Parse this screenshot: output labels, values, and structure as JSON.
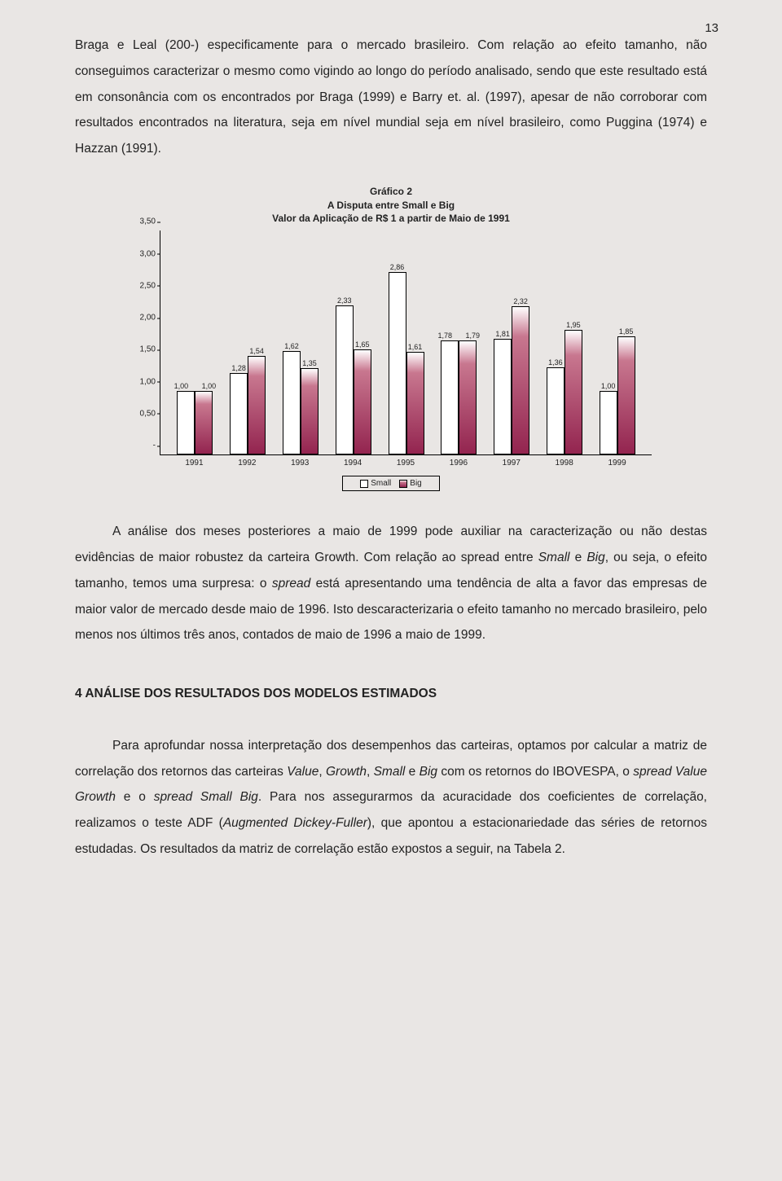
{
  "page_number": "13",
  "para1": "Braga e Leal (200-) especificamente para o mercado brasileiro. Com relação ao efeito tamanho, não conseguimos caracterizar o mesmo como vigindo ao longo do período analisado, sendo que este resultado está em consonância com os encontrados por Braga (1999) e Barry et. al. (1997), apesar de não corroborar com resultados encontrados na literatura, seja em nível mundial seja em nível brasileiro, como Puggina (1974) e Hazzan (1991).",
  "para2_a": "A análise dos meses posteriores a maio de 1999 pode auxiliar na caracterização ou não destas evidências de maior robustez da carteira Growth. Com relação ao spread entre ",
  "para2_b": " e ",
  "para2_c": ", ou seja, o efeito tamanho, temos uma surpresa: o ",
  "para2_d": " está apresentando uma tendência de alta a favor das empresas de maior valor de mercado desde maio de 1996. Isto descaracterizaria o efeito tamanho no mercado brasileiro, pelo menos nos últimos três anos, contados de maio de 1996 a maio de 1999.",
  "para2_small": "Small",
  "para2_big": "Big",
  "para2_spread": "spread",
  "section_heading": "4   ANÁLISE DOS RESULTADOS DOS MODELOS ESTIMADOS",
  "para3_a": "Para aprofundar nossa interpretação dos desempenhos das carteiras, optamos por calcular a matriz de correlação dos retornos das carteiras ",
  "para3_value": "Value",
  "para3_b": ", ",
  "para3_growth": "Growth",
  "para3_c": ", ",
  "para3_small": "Small",
  "para3_d": " e ",
  "para3_big": "Big",
  "para3_e": " com os retornos do IBOVESPA, o ",
  "para3_spread1": "spread Value Growth",
  "para3_f": " e o ",
  "para3_spread2": "spread Small Big",
  "para3_g": ". Para nos assegurarmos da acuracidade dos coeficientes de correlação, realizamos o teste ADF (",
  "para3_adf": "Augmented Dickey-Fuller",
  "para3_h": "), que apontou a estacionariedade das séries de retornos estudadas. Os resultados da matriz de correlação estão expostos a seguir, na Tabela 2.",
  "chart": {
    "title_l1": "Gráfico 2",
    "title_l2": "A Disputa entre Small e Big",
    "title_l3": "Valor da Aplicação de R$ 1 a partir de Maio de 1991",
    "ymax": 3.5,
    "yticks": [
      "3,50",
      "3,00",
      "2,50",
      "2,00",
      "1,50",
      "1,00",
      "0,50",
      "-"
    ],
    "ytick_vals": [
      3.5,
      3.0,
      2.5,
      2.0,
      1.5,
      1.0,
      0.5,
      0.0
    ],
    "years": [
      "1991",
      "1992",
      "1993",
      "1994",
      "1995",
      "1996",
      "1997",
      "1998",
      "1999"
    ],
    "small_vals": [
      1.0,
      1.28,
      1.62,
      2.33,
      2.86,
      1.78,
      1.81,
      1.36,
      1.0
    ],
    "big_vals": [
      1.0,
      1.54,
      1.35,
      1.65,
      1.61,
      1.79,
      2.32,
      1.95,
      1.85
    ],
    "small_labels": [
      "1,00",
      "1,28",
      "1,62",
      "2,33",
      "2,86",
      "1,78",
      "1,81",
      "1,36",
      "1,00"
    ],
    "big_labels": [
      "1,00",
      "1,54",
      "1,35",
      "1,65",
      "1,61",
      "1,79",
      "2,32",
      "1,95",
      "1,85"
    ],
    "legend_small": "Small",
    "legend_big": "Big",
    "colors": {
      "big_top": "#ffffff",
      "big_mid": "#c8778f",
      "big_bot": "#93244f",
      "small_fill": "#ffffff",
      "border": "#000000",
      "page_bg": "#e9e6e4"
    }
  }
}
